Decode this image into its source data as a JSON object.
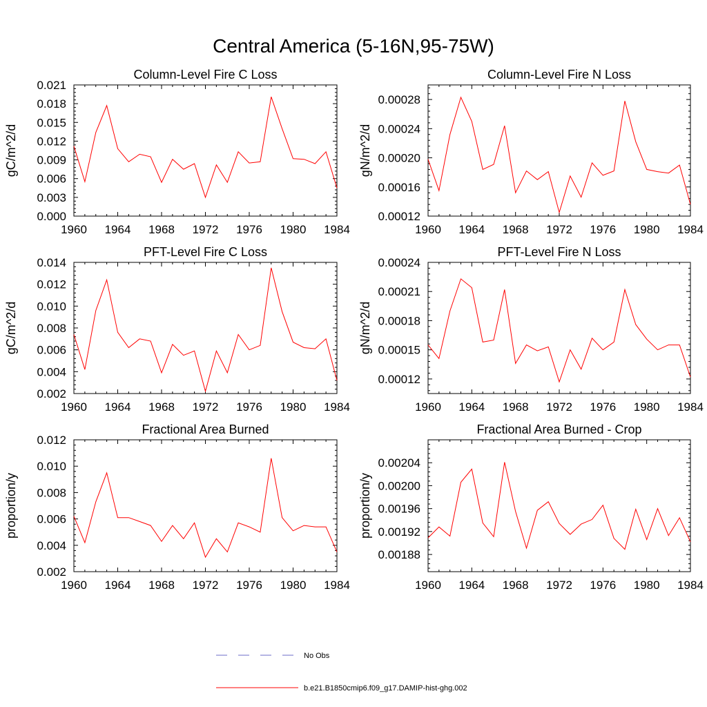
{
  "page_title": "Central America (5-16N,95-75W)",
  "legend": {
    "entries": [
      {
        "label": "No Obs",
        "color": "#6b6bc8",
        "style": "dashed"
      },
      {
        "label": "b.e21.B1850cmip6.f09_g17.DAMIP-hist-ghg.002",
        "color": "#ff0000",
        "style": "solid"
      }
    ]
  },
  "chart_data": [
    {
      "type": "line",
      "title": "Column-Level Fire C Loss",
      "ylabel": "gC/m^2/d",
      "xlim": [
        1960,
        1984
      ],
      "ylim": [
        0.0,
        0.021
      ],
      "xticks": [
        1960,
        1964,
        1968,
        1972,
        1976,
        1980,
        1984
      ],
      "yticks": [
        "0.000",
        "0.003",
        "0.006",
        "0.009",
        "0.012",
        "0.015",
        "0.018",
        "0.021"
      ],
      "x": [
        1960,
        1961,
        1962,
        1963,
        1964,
        1965,
        1966,
        1967,
        1968,
        1969,
        1970,
        1971,
        1972,
        1973,
        1974,
        1975,
        1976,
        1977,
        1978,
        1979,
        1980,
        1981,
        1982,
        1983,
        1984
      ],
      "series": [
        {
          "color": "#ff0000",
          "values": [
            0.0112,
            0.0055,
            0.0134,
            0.0177,
            0.0108,
            0.0087,
            0.0099,
            0.0095,
            0.0054,
            0.0091,
            0.0075,
            0.0084,
            0.003,
            0.0082,
            0.0054,
            0.0103,
            0.0085,
            0.0087,
            0.0191,
            0.014,
            0.0092,
            0.0091,
            0.0084,
            0.0103,
            0.0045
          ]
        }
      ]
    },
    {
      "type": "line",
      "title": "Column-Level Fire N Loss",
      "ylabel": "gN/m^2/d",
      "xlim": [
        1960,
        1984
      ],
      "ylim": [
        0.00012,
        0.0003
      ],
      "xticks": [
        1960,
        1964,
        1968,
        1972,
        1976,
        1980,
        1984
      ],
      "yticks": [
        "0.00012",
        "0.00016",
        "0.00020",
        "0.00024",
        "0.00028"
      ],
      "x": [
        1960,
        1961,
        1962,
        1963,
        1964,
        1965,
        1966,
        1967,
        1968,
        1969,
        1970,
        1971,
        1972,
        1973,
        1974,
        1975,
        1976,
        1977,
        1978,
        1979,
        1980,
        1981,
        1982,
        1983,
        1984
      ],
      "series": [
        {
          "color": "#ff0000",
          "values": [
            0.000198,
            0.000155,
            0.000232,
            0.000283,
            0.00025,
            0.000184,
            0.000191,
            0.000244,
            0.000152,
            0.000182,
            0.00017,
            0.000181,
            0.000125,
            0.000175,
            0.000146,
            0.000193,
            0.000176,
            0.000182,
            0.000278,
            0.000222,
            0.000184,
            0.000181,
            0.000179,
            0.00019,
            0.000136
          ]
        }
      ]
    },
    {
      "type": "line",
      "title": "PFT-Level Fire C Loss",
      "ylabel": "gC/m^2/d",
      "xlim": [
        1960,
        1984
      ],
      "ylim": [
        0.002,
        0.014
      ],
      "xticks": [
        1960,
        1964,
        1968,
        1972,
        1976,
        1980,
        1984
      ],
      "yticks": [
        "0.002",
        "0.004",
        "0.006",
        "0.008",
        "0.010",
        "0.012",
        "0.014"
      ],
      "x": [
        1960,
        1961,
        1962,
        1963,
        1964,
        1965,
        1966,
        1967,
        1968,
        1969,
        1970,
        1971,
        1972,
        1973,
        1974,
        1975,
        1976,
        1977,
        1978,
        1979,
        1980,
        1981,
        1982,
        1983,
        1984
      ],
      "series": [
        {
          "color": "#ff0000",
          "values": [
            0.0074,
            0.0042,
            0.0096,
            0.0124,
            0.0076,
            0.0062,
            0.007,
            0.0068,
            0.0039,
            0.0065,
            0.0055,
            0.0059,
            0.0022,
            0.0059,
            0.0039,
            0.0074,
            0.006,
            0.0064,
            0.0135,
            0.0095,
            0.0067,
            0.0062,
            0.0061,
            0.007,
            0.0032
          ]
        }
      ]
    },
    {
      "type": "line",
      "title": "PFT-Level Fire N Loss",
      "ylabel": "gN/m^2/d",
      "xlim": [
        1960,
        1984
      ],
      "ylim": [
        0.000105,
        0.00024
      ],
      "xticks": [
        1960,
        1964,
        1968,
        1972,
        1976,
        1980,
        1984
      ],
      "yticks": [
        "0.00012",
        "0.00015",
        "0.00018",
        "0.00021",
        "0.00024"
      ],
      "x": [
        1960,
        1961,
        1962,
        1963,
        1964,
        1965,
        1966,
        1967,
        1968,
        1969,
        1970,
        1971,
        1972,
        1973,
        1974,
        1975,
        1976,
        1977,
        1978,
        1979,
        1980,
        1981,
        1982,
        1983,
        1984
      ],
      "series": [
        {
          "color": "#ff0000",
          "values": [
            0.000155,
            0.000141,
            0.00019,
            0.000223,
            0.000214,
            0.000158,
            0.00016,
            0.000212,
            0.000136,
            0.000155,
            0.000149,
            0.000153,
            0.000117,
            0.00015,
            0.00013,
            0.000162,
            0.00015,
            0.000158,
            0.000212,
            0.000176,
            0.000161,
            0.00015,
            0.000155,
            0.000155,
            0.000122
          ]
        }
      ]
    },
    {
      "type": "line",
      "title": "Fractional Area Burned",
      "ylabel": "proportion/y",
      "xlim": [
        1960,
        1984
      ],
      "ylim": [
        0.002,
        0.012
      ],
      "xticks": [
        1960,
        1964,
        1968,
        1972,
        1976,
        1980,
        1984
      ],
      "yticks": [
        "0.002",
        "0.004",
        "0.006",
        "0.008",
        "0.010",
        "0.012"
      ],
      "x": [
        1960,
        1961,
        1962,
        1963,
        1964,
        1965,
        1966,
        1967,
        1968,
        1969,
        1970,
        1971,
        1972,
        1973,
        1974,
        1975,
        1976,
        1977,
        1978,
        1979,
        1980,
        1981,
        1982,
        1983,
        1984
      ],
      "series": [
        {
          "color": "#ff0000",
          "values": [
            0.0062,
            0.0042,
            0.0073,
            0.0095,
            0.0061,
            0.0061,
            0.0058,
            0.0055,
            0.0043,
            0.0055,
            0.0045,
            0.0057,
            0.0031,
            0.0045,
            0.0035,
            0.0057,
            0.0054,
            0.005,
            0.0106,
            0.0061,
            0.0051,
            0.0055,
            0.0054,
            0.0054,
            0.0035
          ]
        }
      ]
    },
    {
      "type": "line",
      "title": "Fractional Area Burned - Crop",
      "ylabel": "proportion/y",
      "xlim": [
        1960,
        1984
      ],
      "ylim": [
        0.00185,
        0.00208
      ],
      "xticks": [
        1960,
        1964,
        1968,
        1972,
        1976,
        1980,
        1984
      ],
      "yticks": [
        "0.00188",
        "0.00192",
        "0.00196",
        "0.00200",
        "0.00204"
      ],
      "x": [
        1960,
        1961,
        1962,
        1963,
        1964,
        1965,
        1966,
        1967,
        1968,
        1969,
        1970,
        1971,
        1972,
        1973,
        1974,
        1975,
        1976,
        1977,
        1978,
        1979,
        1980,
        1981,
        1982,
        1983,
        1984
      ],
      "series": [
        {
          "color": "#ff0000",
          "values": [
            0.001909,
            0.001928,
            0.001912,
            0.002006,
            0.002029,
            0.001935,
            0.001911,
            0.002041,
            0.001955,
            0.001891,
            0.001957,
            0.001972,
            0.001934,
            0.001915,
            0.001933,
            0.001941,
            0.001966,
            0.001908,
            0.001889,
            0.001959,
            0.001906,
            0.00196,
            0.001913,
            0.001944,
            0.001902
          ]
        }
      ]
    }
  ]
}
